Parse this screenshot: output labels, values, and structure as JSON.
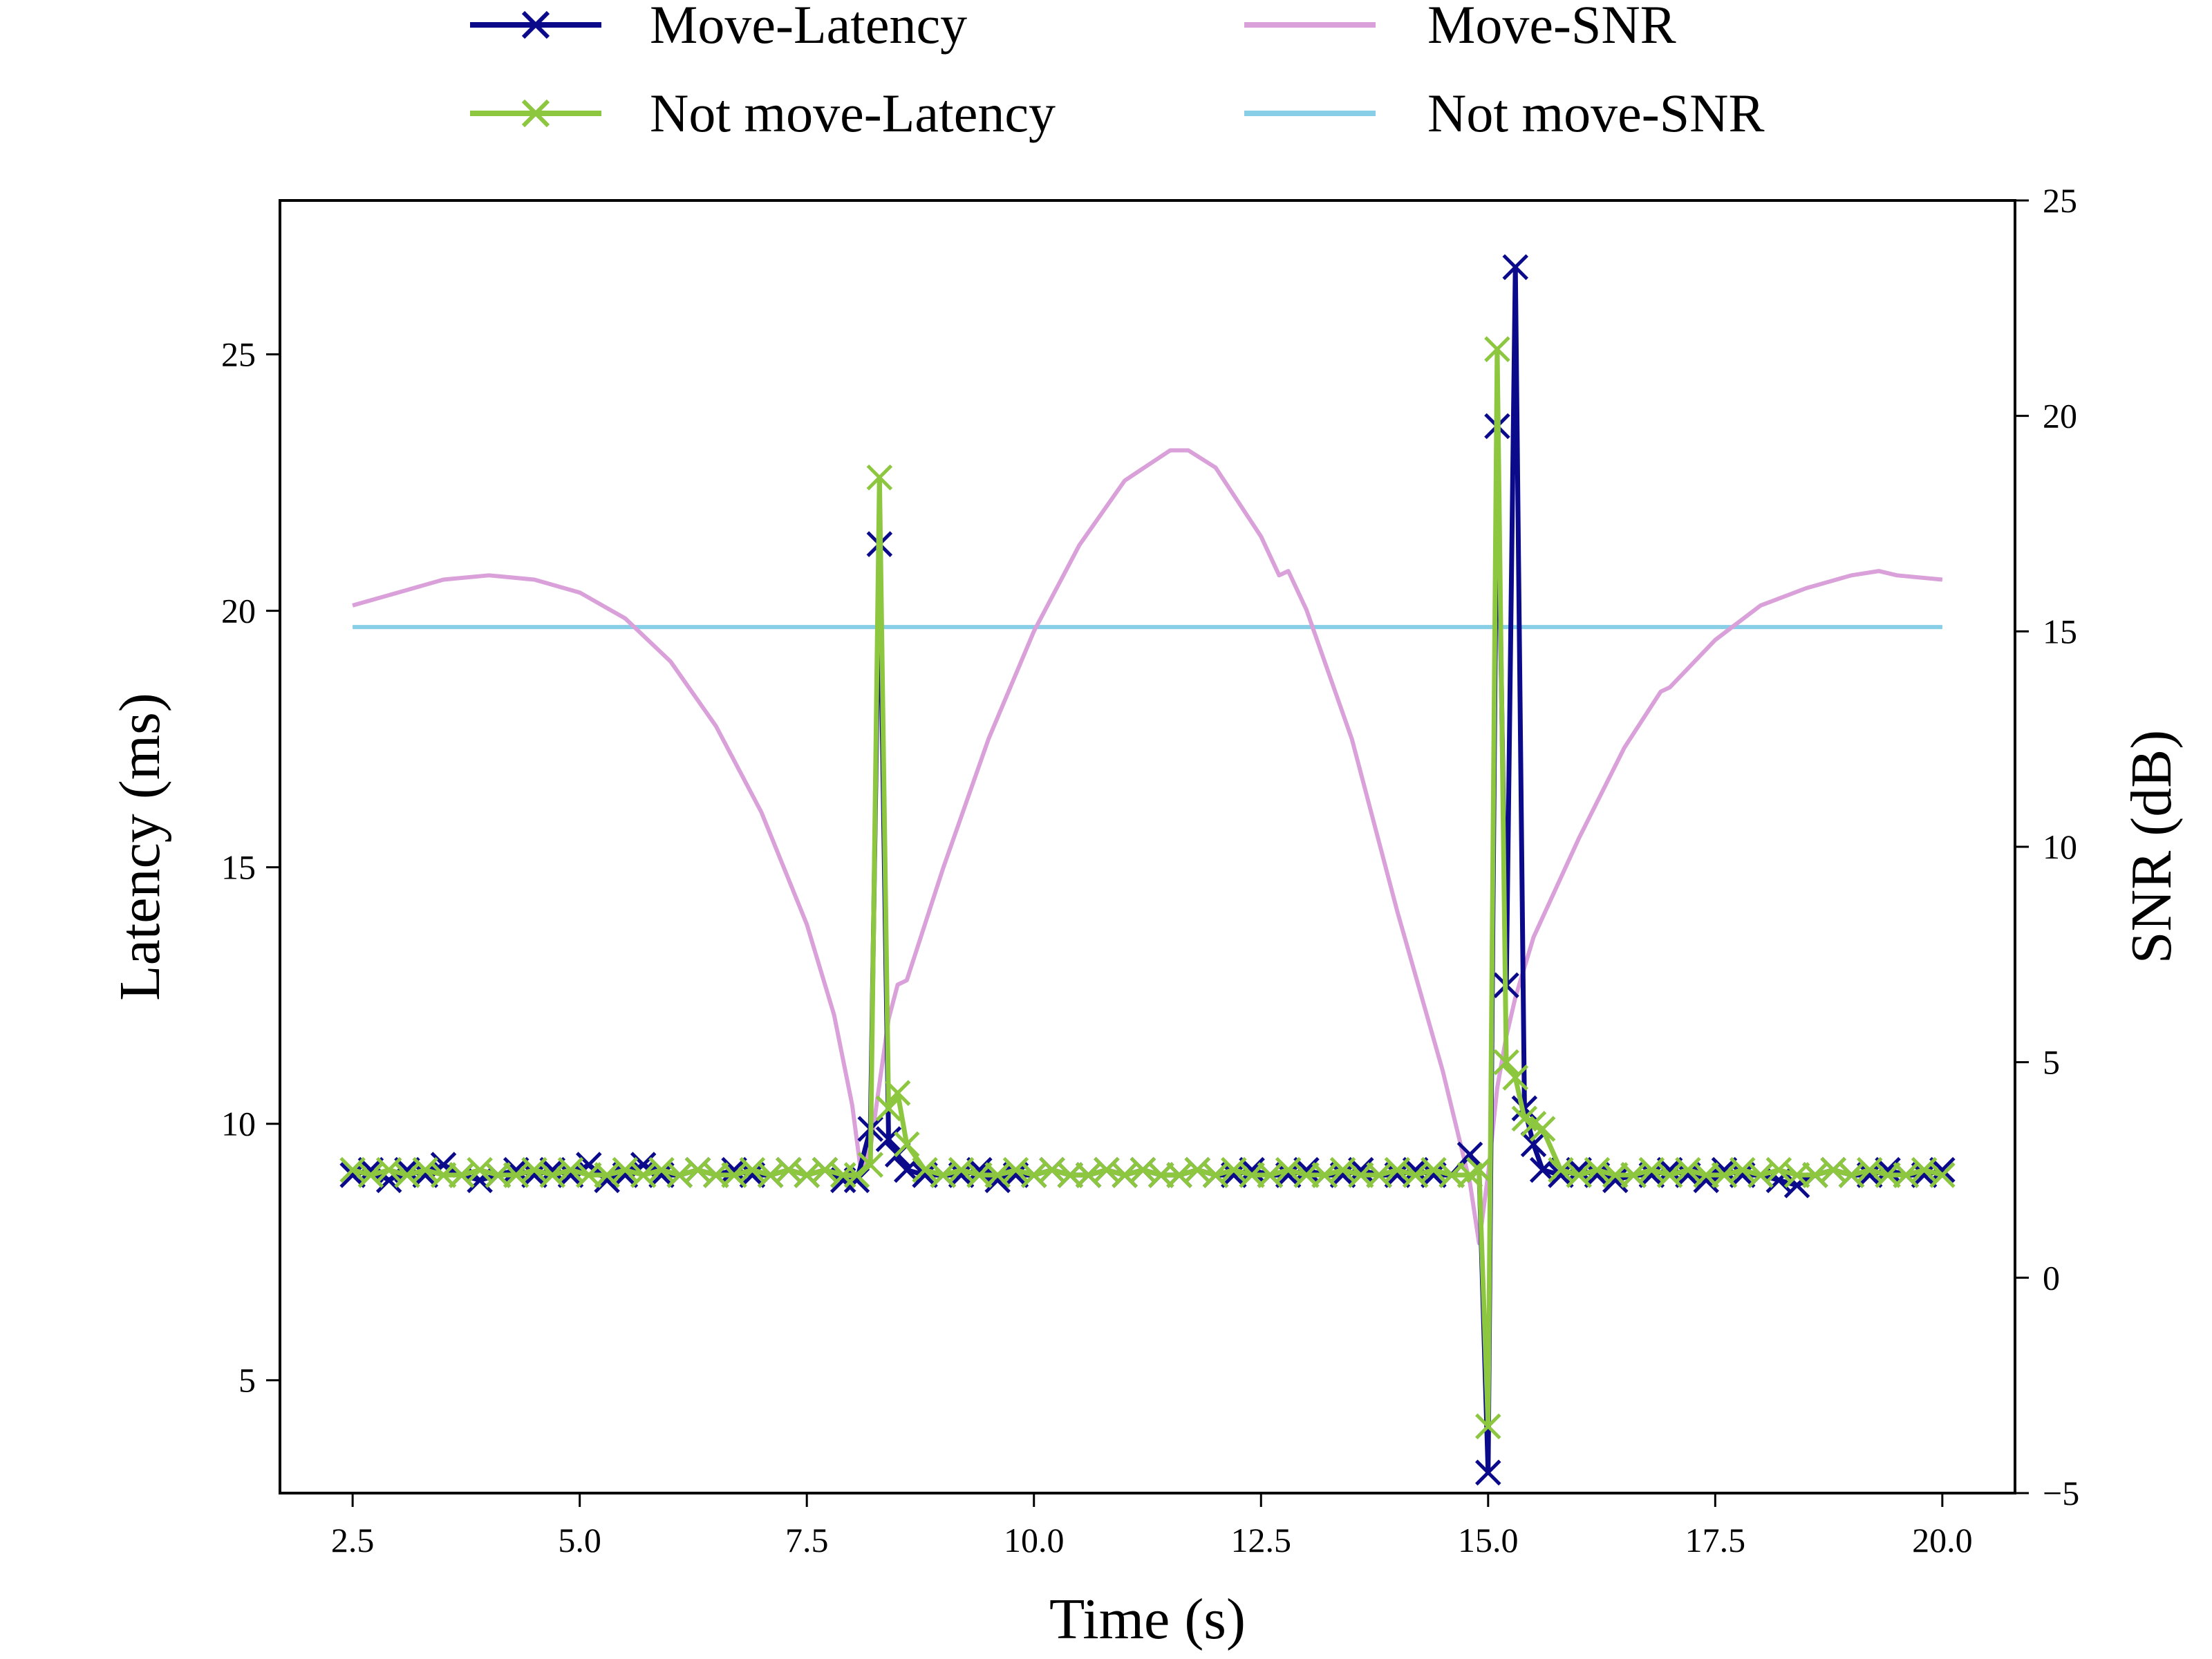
{
  "chart_data": {
    "type": "line",
    "xlabel": "Time (s)",
    "ylabel_left": "Latency (ms)",
    "ylabel_right": "SNR (dB)",
    "xlim": [
      1.7,
      20.8
    ],
    "ylim_left": [
      2.8,
      28.0
    ],
    "ylim_right": [
      -5,
      25
    ],
    "x_ticks": [
      "2.5",
      "5.0",
      "7.5",
      "10.0",
      "12.5",
      "15.0",
      "17.5",
      "20.0"
    ],
    "y_ticks_left": [
      "5",
      "10",
      "15",
      "20",
      "25"
    ],
    "y_ticks_right": [
      "−5",
      "0",
      "5",
      "10",
      "15",
      "20",
      "25"
    ],
    "grid": false,
    "legend_position": "top, outside plot, 2 columns",
    "colors": {
      "move_latency": "#0a0a8a",
      "not_move_latency": "#8dc63f",
      "move_snr": "#d9a0d9",
      "not_move_snr": "#87cee6"
    },
    "series": [
      {
        "name": "Move-Latency",
        "axis": "left",
        "marker": "x",
        "x": [
          2.5,
          2.7,
          2.9,
          3.1,
          3.3,
          3.5,
          3.7,
          3.9,
          4.1,
          4.3,
          4.5,
          4.7,
          4.9,
          5.1,
          5.3,
          5.5,
          5.7,
          5.9,
          6.1,
          6.3,
          6.5,
          6.7,
          6.9,
          7.1,
          7.3,
          7.5,
          7.7,
          7.9,
          8.05,
          8.2,
          8.3,
          8.4,
          8.5,
          8.6,
          8.8,
          9.0,
          9.2,
          9.4,
          9.6,
          9.8,
          10.0,
          10.2,
          10.4,
          10.6,
          10.8,
          11.0,
          11.2,
          11.4,
          11.6,
          11.8,
          12.0,
          12.2,
          12.4,
          12.6,
          12.8,
          13.0,
          13.2,
          13.4,
          13.6,
          13.8,
          14.0,
          14.2,
          14.4,
          14.6,
          14.8,
          14.9,
          15.0,
          15.1,
          15.2,
          15.3,
          15.4,
          15.5,
          15.6,
          15.8,
          16.0,
          16.2,
          16.4,
          16.6,
          16.8,
          17.0,
          17.2,
          17.4,
          17.6,
          17.8,
          18.0,
          18.2,
          18.4,
          18.6,
          18.8,
          19.0,
          19.2,
          19.4,
          19.6,
          19.8,
          20.0
        ],
        "y": [
          9.0,
          9.1,
          8.9,
          9.1,
          9.0,
          9.2,
          9.0,
          8.9,
          9.0,
          9.1,
          9.0,
          9.1,
          9.0,
          9.2,
          8.9,
          9.0,
          9.2,
          9.0,
          9.0,
          9.1,
          9.0,
          9.1,
          9.0,
          9.0,
          9.1,
          9.0,
          9.1,
          8.9,
          8.9,
          9.9,
          21.3,
          9.7,
          9.4,
          9.1,
          9.0,
          9.0,
          9.0,
          9.1,
          8.9,
          9.0,
          9.0,
          9.1,
          9.0,
          9.0,
          9.1,
          9.0,
          9.1,
          9.0,
          9.0,
          9.1,
          9.0,
          9.0,
          9.1,
          9.0,
          9.0,
          9.1,
          9.0,
          9.0,
          9.1,
          9.0,
          9.0,
          9.1,
          9.0,
          9.0,
          9.4,
          9.1,
          3.2,
          23.6,
          12.7,
          26.7,
          10.3,
          9.6,
          9.1,
          9.0,
          9.1,
          9.0,
          8.9,
          9.0,
          9.0,
          9.1,
          9.0,
          8.9,
          9.1,
          9.0,
          9.0,
          8.9,
          8.8,
          9.0,
          9.1,
          9.0,
          9.0,
          9.1,
          9.0,
          9.0,
          9.1
        ]
      },
      {
        "name": "Not move-Latency",
        "axis": "left",
        "marker": "x",
        "x": [
          2.5,
          2.7,
          2.9,
          3.1,
          3.3,
          3.5,
          3.7,
          3.9,
          4.1,
          4.3,
          4.5,
          4.7,
          4.9,
          5.1,
          5.3,
          5.5,
          5.7,
          5.9,
          6.1,
          6.3,
          6.5,
          6.7,
          6.9,
          7.1,
          7.3,
          7.5,
          7.7,
          7.9,
          8.05,
          8.2,
          8.3,
          8.4,
          8.5,
          8.6,
          8.8,
          9.0,
          9.2,
          9.4,
          9.6,
          9.8,
          10.0,
          10.2,
          10.4,
          10.6,
          10.8,
          11.0,
          11.2,
          11.4,
          11.6,
          11.8,
          12.0,
          12.2,
          12.4,
          12.6,
          12.8,
          13.0,
          13.2,
          13.4,
          13.6,
          13.8,
          14.0,
          14.2,
          14.4,
          14.6,
          14.8,
          14.9,
          15.0,
          15.1,
          15.2,
          15.3,
          15.4,
          15.5,
          15.6,
          15.8,
          16.0,
          16.2,
          16.4,
          16.6,
          16.8,
          17.0,
          17.2,
          17.4,
          17.6,
          17.8,
          18.0,
          18.2,
          18.4,
          18.6,
          18.8,
          19.0,
          19.2,
          19.4,
          19.6,
          19.8,
          20.0
        ],
        "y": [
          9.1,
          9.0,
          9.1,
          9.0,
          9.1,
          9.0,
          9.0,
          9.1,
          9.0,
          9.0,
          9.1,
          9.0,
          9.1,
          9.0,
          9.0,
          9.1,
          9.0,
          9.1,
          9.0,
          9.1,
          9.0,
          9.0,
          9.1,
          9.0,
          9.1,
          9.0,
          9.1,
          9.0,
          9.0,
          9.2,
          22.6,
          10.3,
          10.6,
          9.6,
          9.1,
          9.0,
          9.1,
          9.0,
          9.0,
          9.1,
          9.0,
          9.1,
          9.0,
          9.0,
          9.1,
          9.0,
          9.1,
          9.0,
          9.0,
          9.1,
          9.0,
          9.1,
          9.0,
          9.0,
          9.1,
          9.0,
          9.0,
          9.1,
          9.0,
          9.0,
          9.1,
          9.0,
          9.1,
          9.0,
          9.0,
          9.1,
          4.1,
          25.1,
          11.2,
          10.9,
          10.1,
          10.0,
          9.9,
          9.1,
          9.0,
          9.1,
          9.0,
          9.0,
          9.1,
          9.0,
          9.1,
          9.0,
          9.0,
          9.1,
          9.0,
          9.1,
          9.0,
          9.0,
          9.1,
          9.0,
          9.1,
          9.0,
          9.0,
          9.1,
          9.0
        ]
      },
      {
        "name": "Move-SNR",
        "axis": "right",
        "marker": "none",
        "x": [
          2.5,
          3.0,
          3.5,
          4.0,
          4.5,
          5.0,
          5.5,
          6.0,
          6.5,
          7.0,
          7.5,
          7.8,
          8.0,
          8.1,
          8.2,
          8.3,
          8.4,
          8.5,
          8.6,
          9.0,
          9.5,
          10.0,
          10.5,
          11.0,
          11.5,
          11.7,
          12.0,
          12.5,
          12.7,
          12.8,
          13.0,
          13.5,
          14.0,
          14.5,
          14.8,
          14.9,
          15.0,
          15.1,
          15.2,
          15.3,
          15.5,
          16.0,
          16.5,
          16.9,
          17.0,
          17.5,
          18.0,
          18.5,
          19.0,
          19.3,
          19.5,
          20.0
        ],
        "y": [
          15.6,
          15.9,
          16.2,
          16.3,
          16.2,
          15.9,
          15.3,
          14.3,
          12.8,
          10.8,
          8.2,
          6.1,
          4.0,
          2.4,
          3.0,
          4.5,
          6.0,
          6.8,
          6.9,
          9.5,
          12.5,
          15.0,
          17.0,
          18.5,
          19.2,
          19.2,
          18.8,
          17.2,
          16.3,
          16.4,
          15.5,
          12.5,
          8.5,
          4.8,
          2.2,
          0.8,
          2.4,
          4.4,
          5.6,
          6.5,
          7.9,
          10.2,
          12.3,
          13.6,
          13.7,
          14.8,
          15.6,
          16.0,
          16.3,
          16.4,
          16.3,
          16.2
        ]
      },
      {
        "name": "Not move-SNR",
        "axis": "right",
        "marker": "none",
        "x": [
          2.5,
          20.0
        ],
        "y": [
          15.1,
          15.1
        ]
      }
    ]
  }
}
